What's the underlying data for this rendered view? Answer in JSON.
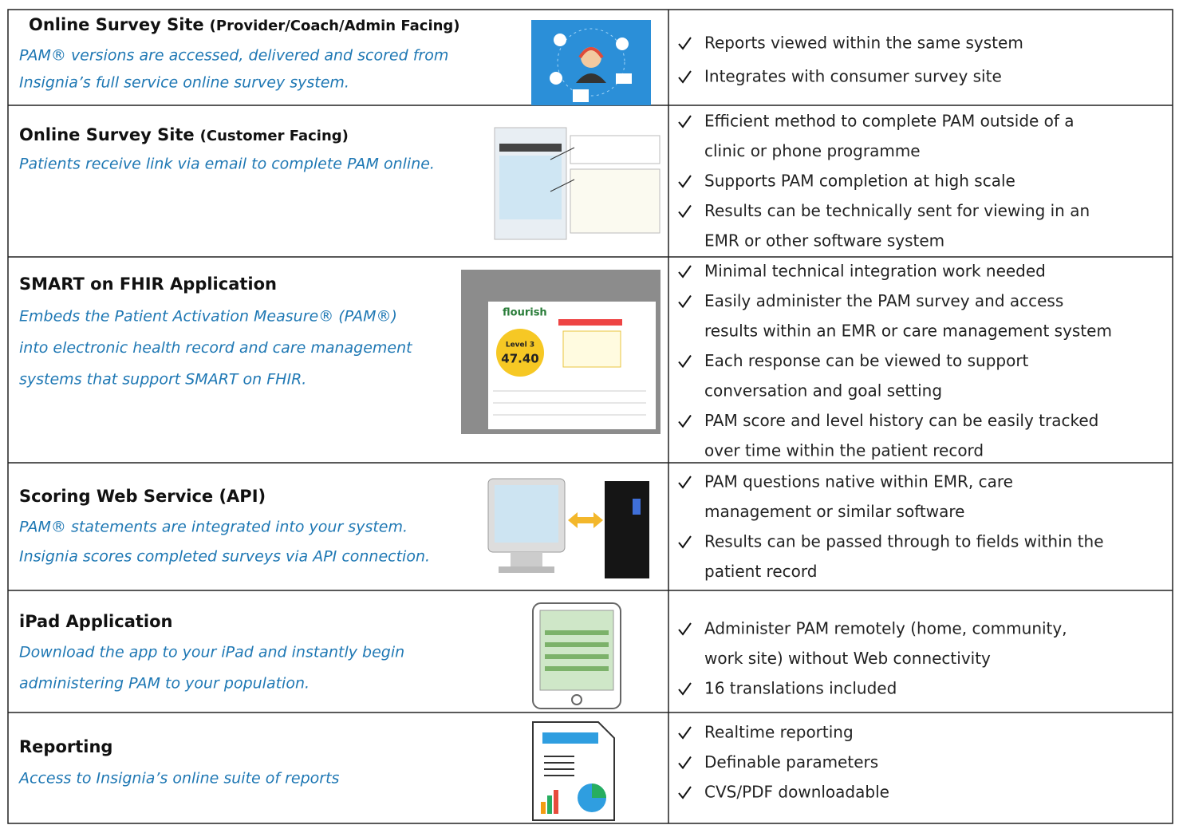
{
  "rows": [
    {
      "title": "Online Survey Site",
      "title_suffix": "(Provider/Coach/Admin Facing)",
      "description": [
        "PAM® versions are accessed, delivered and scored from",
        "Insignia’s full service online survey system."
      ],
      "bullets": [
        [
          "Reports viewed within the same system"
        ],
        [
          "Integrates with consumer survey site"
        ]
      ]
    },
    {
      "title": "Online Survey Site",
      "title_suffix": "(Customer Facing)",
      "description": [
        "Patients receive link via email to complete PAM online."
      ],
      "bullets": [
        [
          "Efficient method to complete PAM outside of a",
          "clinic or phone programme"
        ],
        [
          "Supports PAM completion at high scale"
        ],
        [
          "Results can be technically sent for viewing in an",
          "EMR or other software system"
        ]
      ]
    },
    {
      "title": "SMART on FHIR Application",
      "description": [
        "Embeds the Patient Activation Measure® (PAM®)",
        "into electronic health record and care management",
        "systems that support SMART on FHIR."
      ],
      "figure_text": [
        "flourish",
        "Level 3",
        "47.40"
      ],
      "bullets": [
        [
          "Minimal technical integration work needed"
        ],
        [
          "Easily administer the PAM survey and access",
          "results within an EMR or care management system"
        ],
        [
          "Each response can be viewed to support",
          "conversation and goal setting"
        ],
        [
          "PAM score and level history can be easily tracked",
          "over time within the patient record"
        ]
      ]
    },
    {
      "title": "Scoring Web Service (API)",
      "description": [
        "PAM® statements are integrated into your system.",
        "Insignia scores completed surveys via API connection."
      ],
      "bullets": [
        [
          "PAM questions native within EMR, care",
          "management or similar software"
        ],
        [
          "Results can be passed through to fields within the",
          "patient record"
        ]
      ]
    },
    {
      "title": "iPad Application",
      "description": [
        "Download the app to your iPad and instantly begin",
        "administering PAM to your population."
      ],
      "bullets": [
        [
          "Administer PAM remotely (home, community,",
          "work site) without Web connectivity"
        ],
        [
          "16 translations included"
        ]
      ]
    },
    {
      "title": "Reporting",
      "description": [
        "Access to Insignia’s online suite of reports"
      ],
      "bullets": [
        [
          "Realtime reporting"
        ],
        [
          "Definable parameters"
        ],
        [
          "CVS/PDF downloadable"
        ]
      ]
    }
  ]
}
